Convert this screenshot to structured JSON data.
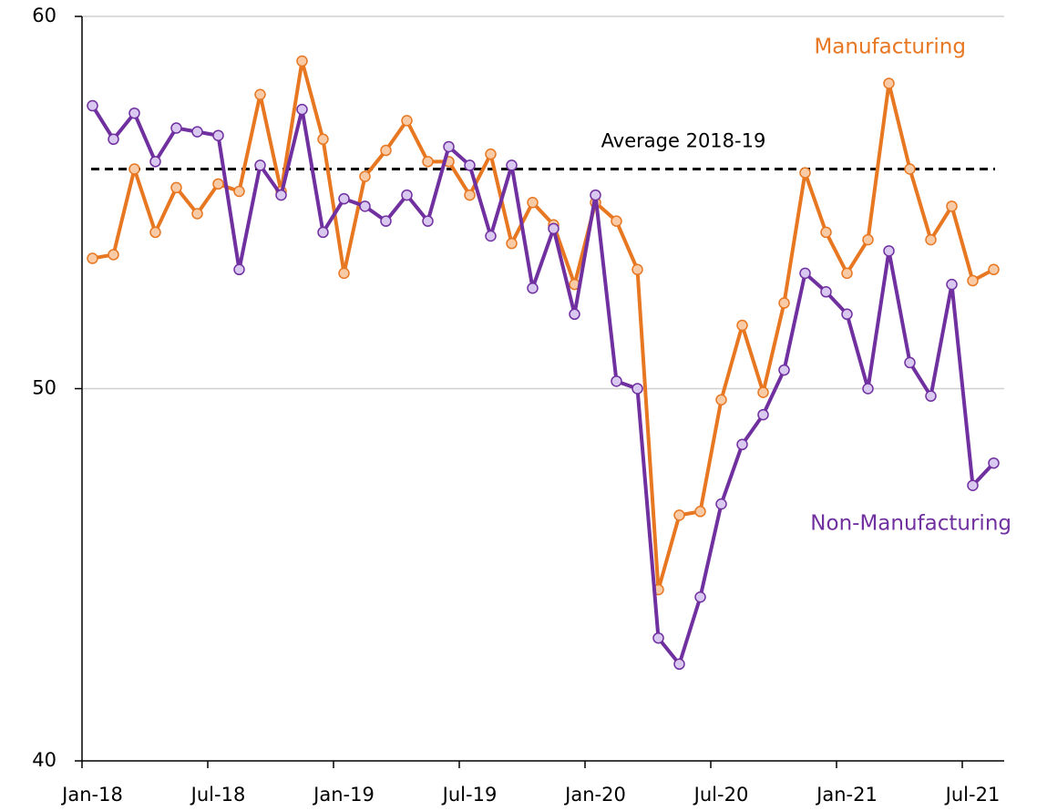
{
  "chart_data": {
    "type": "line",
    "categories": [
      "Jan-18",
      null,
      null,
      null,
      null,
      null,
      "Jul-18",
      null,
      null,
      null,
      null,
      null,
      "Jan-19",
      null,
      null,
      null,
      null,
      null,
      "Jul-19",
      null,
      null,
      null,
      null,
      null,
      "Jan-20",
      null,
      null,
      null,
      null,
      null,
      "Jul-20",
      null,
      null,
      null,
      null,
      null,
      "Jan-21",
      null,
      null,
      null,
      null,
      null,
      "Jul-21",
      null
    ],
    "series": [
      {
        "name": "Manufacturing",
        "color": "#e87722",
        "marker_color": "#f8cba6",
        "values": [
          53.5,
          53.6,
          55.9,
          54.2,
          55.4,
          54.7,
          55.5,
          55.3,
          57.9,
          55.3,
          58.8,
          56.7,
          53.1,
          55.7,
          56.4,
          57.2,
          56.1,
          56.1,
          55.2,
          56.3,
          53.9,
          55.0,
          54.4,
          52.8,
          55.0,
          54.5,
          53.2,
          44.6,
          46.6,
          46.7,
          49.7,
          51.7,
          49.9,
          52.3,
          55.8,
          54.2,
          53.1,
          54.0,
          58.2,
          55.9,
          54.0,
          54.9,
          52.9,
          53.2
        ]
      },
      {
        "name": "Non-Manufacturing",
        "color": "#7030a0",
        "marker_color": "#d9c9f0",
        "values": [
          57.6,
          56.7,
          57.4,
          56.1,
          57.0,
          56.9,
          56.8,
          53.2,
          56.0,
          55.2,
          57.5,
          54.2,
          55.1,
          54.9,
          54.5,
          55.2,
          54.5,
          56.5,
          56.0,
          54.1,
          56.0,
          52.7,
          54.3,
          52.0,
          55.2,
          50.2,
          50.0,
          43.3,
          42.6,
          44.4,
          46.9,
          48.5,
          49.3,
          50.5,
          53.1,
          52.6,
          52.0,
          50.0,
          53.7,
          50.7,
          49.8,
          52.8,
          47.4,
          48.0
        ]
      }
    ],
    "reference_line": {
      "value": 55.9,
      "label": "Average 2018-19"
    },
    "ylim": [
      40,
      60
    ],
    "yticks": [
      40,
      50,
      60
    ],
    "grid": true
  }
}
